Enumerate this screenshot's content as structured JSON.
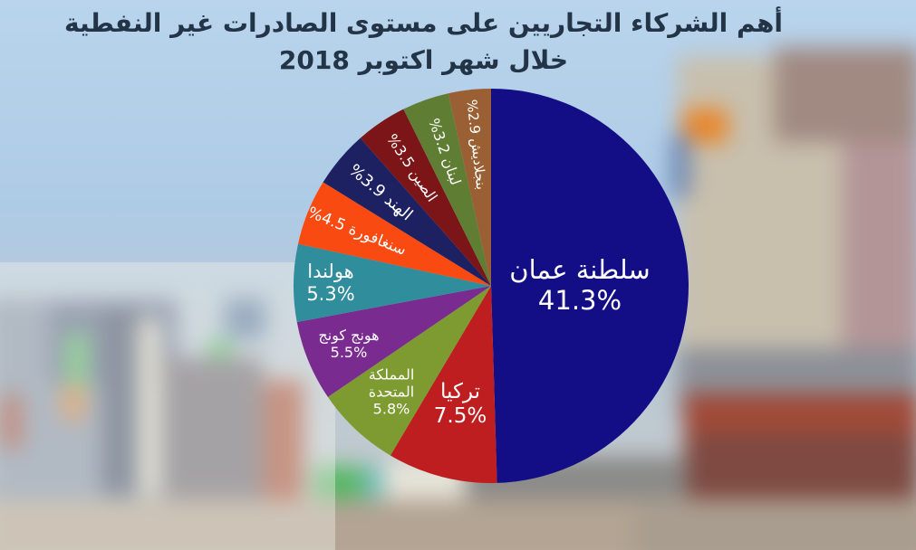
{
  "title": {
    "line1": "أهم الشركاء التجاريين على مستوى الصادرات غير النفطية",
    "line2": "خلال شهر اكتوبر 2018"
  },
  "chart_data": {
    "type": "pie",
    "title": "أهم الشركاء التجاريين على مستوى الصادرات غير النفطية خلال شهر اكتوبر 2018",
    "unit": "%",
    "start_angle_deg": -90,
    "direction": "clockwise",
    "legend": "none",
    "slices": [
      {
        "label": "سلطنة عمان",
        "value": 41.3,
        "color": "#140e86",
        "label_mode": "stacked",
        "label_radius": 0.45,
        "font_px": 29
      },
      {
        "label": "تركيا",
        "value": 7.5,
        "color": "#be1e1f",
        "label_mode": "stacked",
        "label_radius": 0.62,
        "font_px": 23
      },
      {
        "label": "المملكة المتحدة",
        "value": 5.8,
        "color": "#7d9b31",
        "label_mode": "stacked",
        "label_lines": [
          "المملكة",
          "المتحدة"
        ],
        "label_radius": 0.74,
        "font_px": 16
      },
      {
        "label": "هونج كونج",
        "value": 5.5,
        "color": "#7a2b90",
        "label_mode": "stacked",
        "label_radius": 0.78,
        "font_px": 16
      },
      {
        "label": "هولندا",
        "value": 5.3,
        "color": "#2f8d9c",
        "label_mode": "stacked",
        "label_radius": 0.81,
        "font_px": 21
      },
      {
        "label": "سنغافورة",
        "value": 4.5,
        "color": "#f94a12",
        "label_mode": "rotated",
        "label_radius": 0.73,
        "font_px": 17
      },
      {
        "label": "الهند",
        "value": 3.9,
        "color": "#1d2161",
        "label_mode": "rotated",
        "label_radius": 0.73,
        "font_px": 18
      },
      {
        "label": "الصين",
        "value": 3.5,
        "color": "#7c1517",
        "label_mode": "rotated",
        "label_radius": 0.72,
        "font_px": 16
      },
      {
        "label": "لبنان",
        "value": 3.2,
        "color": "#5f7e33",
        "label_mode": "rotated",
        "label_radius": 0.72,
        "font_px": 16
      },
      {
        "label": "بنجلاديش",
        "value": 2.9,
        "color": "#9a6033",
        "label_mode": "rotated",
        "label_radius": 0.72,
        "font_px": 15
      }
    ]
  }
}
